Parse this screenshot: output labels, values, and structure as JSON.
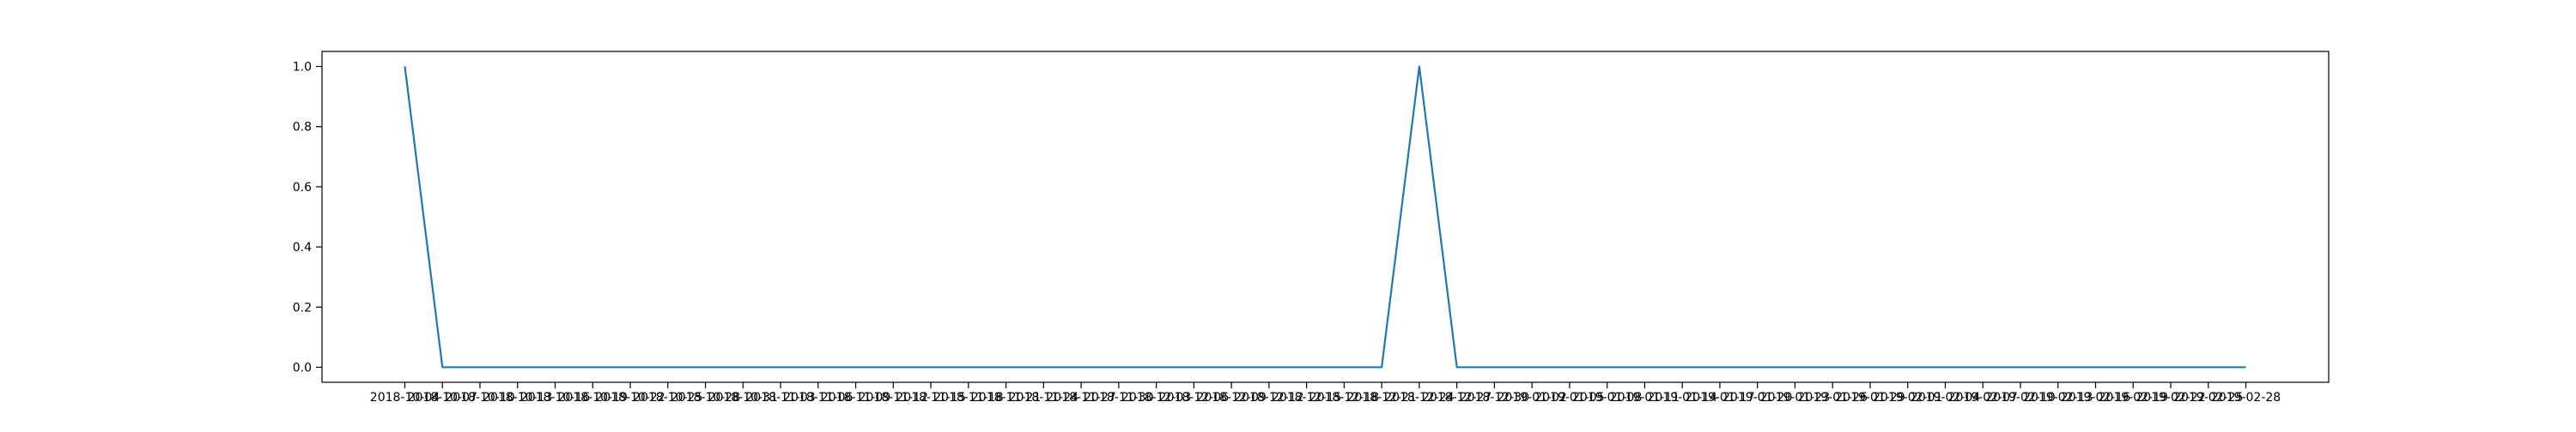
{
  "chart_data": {
    "type": "line",
    "title": "",
    "xlabel": "",
    "ylabel": "",
    "grid": false,
    "x": [
      "2018-10-04",
      "2018-10-07",
      "2018-10-10",
      "2018-10-13",
      "2018-10-16",
      "2018-10-19",
      "2018-10-22",
      "2018-10-25",
      "2018-10-28",
      "2018-10-31",
      "2018-11-03",
      "2018-11-06",
      "2018-11-09",
      "2018-11-12",
      "2018-11-15",
      "2018-11-18",
      "2018-11-21",
      "2018-11-24",
      "2018-11-27",
      "2018-11-30",
      "2018-12-03",
      "2018-12-06",
      "2018-12-09",
      "2018-12-12",
      "2018-12-15",
      "2018-12-18",
      "2018-12-21",
      "2018-12-24",
      "2018-12-27",
      "2018-12-30",
      "2019-01-02",
      "2019-01-05",
      "2019-01-08",
      "2019-01-11",
      "2019-01-14",
      "2019-01-17",
      "2019-01-20",
      "2019-01-23",
      "2019-01-26",
      "2019-01-29",
      "2019-02-01",
      "2019-02-04",
      "2019-02-07",
      "2019-02-10",
      "2019-02-13",
      "2019-02-16",
      "2019-02-19",
      "2019-02-22",
      "2019-02-25",
      "2019-02-28"
    ],
    "series": [
      {
        "color": "#1f77b4",
        "x": [
          "2018-10-04",
          "2018-10-07",
          "2018-12-21",
          "2018-12-24",
          "2018-12-27",
          "2019-02-28"
        ],
        "y": [
          1.0,
          0.0,
          0.0,
          1.0,
          0.0,
          0.0
        ]
      }
    ],
    "ylim": [
      -0.05,
      1.05
    ],
    "yticks": [
      0.0,
      0.2,
      0.4,
      0.6,
      0.8,
      1.0
    ],
    "ytick_labels": [
      "0.0",
      "0.2",
      "0.4",
      "0.6",
      "0.8",
      "1.0"
    ],
    "axis_color": "#000000"
  }
}
